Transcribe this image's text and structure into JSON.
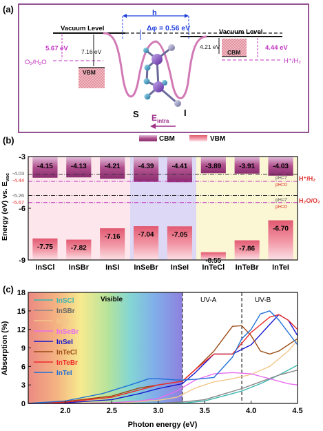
{
  "panel_a": {
    "label": "(a)",
    "h_label": "h",
    "vac_left": "Vacuum Level",
    "vac_right": "Vacuum Level",
    "delta_phi": "Δφ = 0.56 eV",
    "left_pink_value": "5.67 eV",
    "left_black_value": "7.16 eV",
    "right_black_value": "4.21 eV",
    "right_pink_value": "4.44 eV",
    "o2_label": "O₂/H₂O",
    "h_label2": "H⁺/H₂",
    "vbm_box": "VBM",
    "cbm_box": "CBM",
    "atom_s": "S",
    "atom_i": "I",
    "e_intra": "E",
    "e_intra_sub": "intra",
    "colors": {
      "pink": "#c030c0",
      "blue": "#1f3fdc",
      "box": "#e8a0a8",
      "frame": "#7a2a7a"
    }
  },
  "panel_b": {
    "label": "(b)",
    "ylabel": "Energy (eV) vs. E",
    "ylabel_sub": "vac",
    "legend": {
      "cbm": "CBM",
      "vbm": "VBM"
    },
    "ref_lines": {
      "her_pH7": "-4.03",
      "her_pH0": "-4.44",
      "oer_pH7": "-5.26",
      "oer_pH0": "-5.67",
      "ph7": "pH=7",
      "ph0": "pH=0",
      "her_label": "H⁺/H₂",
      "oer_label": "H₂O/O₂"
    },
    "colors": {
      "cbm": "#a0447e",
      "vbm": "#e36b80",
      "bg_pink": "#fde7ec",
      "bg_purple": "#dcd8f6",
      "bg_yellow": "#fbf6d4",
      "red_text": "#e0302e"
    }
  },
  "panel_c": {
    "label": "(c)",
    "region_labels": {
      "visible": "Visible",
      "uva": "UV-A",
      "uvb": "UV-B"
    }
  },
  "chart_data": [
    {
      "type": "bar",
      "title": "",
      "xlabel": "",
      "ylabel": "Energy (eV) vs. Evac",
      "categories": [
        "InSCl",
        "InSBr",
        "InSI",
        "InSeBr",
        "InSeI",
        "InTeCl",
        "InTeBr",
        "InTeI"
      ],
      "series": [
        {
          "name": "CBM",
          "values": [
            -4.15,
            -4.13,
            -4.21,
            -4.39,
            -4.41,
            -3.89,
            -3.91,
            -4.03
          ]
        },
        {
          "name": "VBM",
          "values": [
            -7.75,
            -7.82,
            -7.16,
            -7.04,
            -7.05,
            -8.55,
            -7.86,
            -6.7
          ]
        }
      ],
      "ylim": [
        -9,
        -3
      ],
      "yticks": [
        -3,
        -6,
        -9
      ],
      "reference_levels": [
        -4.03,
        -4.44,
        -5.26,
        -5.67
      ],
      "legend_position": "top-center"
    },
    {
      "type": "line",
      "title": "",
      "xlabel": "Photon energy (eV)",
      "ylabel": "Absorption (%)",
      "xlim": [
        1.6,
        4.5
      ],
      "ylim": [
        0,
        18
      ],
      "xticks": [
        2.0,
        2.5,
        3.0,
        3.5,
        4.0,
        4.5
      ],
      "yticks": [
        0,
        3,
        6,
        9,
        12,
        15,
        18
      ],
      "vlines": [
        3.26,
        3.9
      ],
      "legend_position": "top-left",
      "series": [
        {
          "name": "InSCl",
          "color": "#3bb7b0",
          "x": [
            1.6,
            2.0,
            2.5,
            3.0,
            3.3,
            3.5,
            3.7,
            3.9,
            4.1,
            4.3,
            4.5
          ],
          "y": [
            0,
            0,
            0,
            0,
            0.1,
            0.4,
            1.2,
            2.0,
            3.2,
            4.6,
            6.2
          ]
        },
        {
          "name": "InSBr",
          "color": "#888888",
          "x": [
            1.6,
            2.0,
            2.5,
            3.0,
            3.3,
            3.5,
            3.7,
            3.9,
            4.1,
            4.3,
            4.5
          ],
          "y": [
            0,
            0,
            0,
            0,
            0.3,
            0.6,
            1.5,
            2.4,
            3.5,
            4.6,
            5.4
          ]
        },
        {
          "name": "InSI",
          "color": "#f2c68a",
          "x": [
            1.6,
            2.0,
            2.5,
            3.0,
            3.2,
            3.4,
            3.6,
            3.8,
            4.0,
            4.2,
            4.4,
            4.5
          ],
          "y": [
            0,
            0,
            0,
            0.5,
            1.0,
            2.5,
            3.5,
            4.0,
            4.7,
            6.0,
            8.5,
            10.2
          ]
        },
        {
          "name": "InSeBr",
          "color": "#e86df0",
          "x": [
            1.6,
            2.0,
            2.5,
            2.8,
            3.0,
            3.2,
            3.4,
            3.6,
            3.8,
            4.0,
            4.2,
            4.4,
            4.5
          ],
          "y": [
            0,
            0,
            0.1,
            0.4,
            0.8,
            2.0,
            3.8,
            4.8,
            5.0,
            4.8,
            4.0,
            3.2,
            3.0
          ]
        },
        {
          "name": "InSeI",
          "color": "#1515d0",
          "x": [
            1.6,
            2.0,
            2.5,
            2.8,
            3.0,
            3.26,
            3.4,
            3.6,
            3.8,
            4.0,
            4.2,
            4.3,
            4.4,
            4.5
          ],
          "y": [
            0,
            0.1,
            0.6,
            1.6,
            2.4,
            3.2,
            5.0,
            8.0,
            8.0,
            9.5,
            12.8,
            14.4,
            13.5,
            11.0
          ]
        },
        {
          "name": "InTeCl",
          "color": "#9c4a12",
          "x": [
            1.6,
            2.0,
            2.5,
            2.8,
            3.0,
            3.26,
            3.4,
            3.6,
            3.7,
            3.8,
            3.9,
            4.0,
            4.1,
            4.2,
            4.3,
            4.5
          ],
          "y": [
            0,
            0.3,
            1.2,
            2.5,
            3.0,
            3.6,
            5.5,
            8.5,
            10.5,
            12.5,
            12.6,
            11.0,
            8.5,
            8.0,
            8.5,
            10.5
          ]
        },
        {
          "name": "InTeBr",
          "color": "#ee2a2a",
          "x": [
            1.6,
            2.0,
            2.5,
            2.8,
            3.0,
            3.26,
            3.4,
            3.6,
            3.7,
            3.8,
            4.0,
            4.2,
            4.3,
            4.4,
            4.5
          ],
          "y": [
            0,
            0.2,
            1.0,
            2.2,
            3.0,
            3.6,
            5.5,
            8.0,
            8.0,
            8.0,
            11.5,
            14.0,
            14.4,
            13.5,
            12.0
          ]
        },
        {
          "name": "InTeI",
          "color": "#2070d8",
          "x": [
            1.6,
            2.0,
            2.4,
            2.7,
            2.9,
            3.0,
            3.2,
            3.26,
            3.4,
            3.6,
            3.8,
            3.9,
            4.0,
            4.1,
            4.2,
            4.3,
            4.5
          ],
          "y": [
            0,
            0.4,
            1.6,
            3.0,
            4.0,
            4.0,
            3.8,
            3.8,
            3.9,
            4.2,
            7.5,
            10.5,
            12.0,
            14.5,
            15.0,
            13.5,
            9.5
          ]
        }
      ]
    }
  ]
}
